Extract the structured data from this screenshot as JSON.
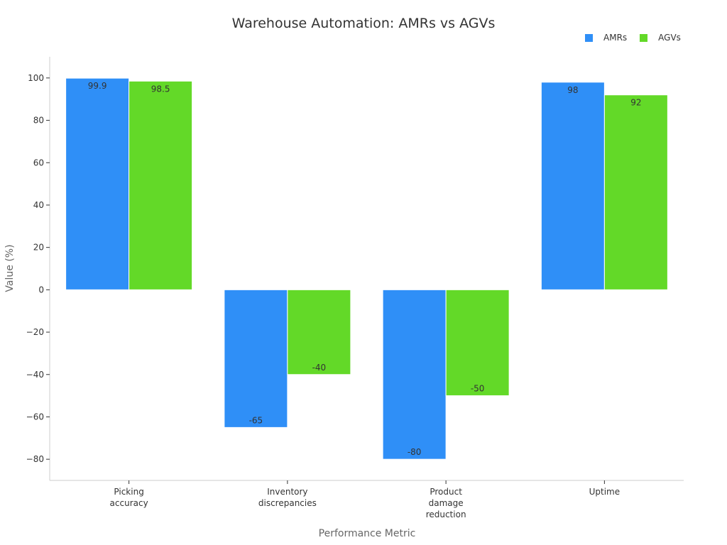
{
  "chart_data": {
    "type": "bar",
    "title": "Warehouse Automation: AMRs vs AGVs",
    "xlabel": "Performance Metric",
    "ylabel": "Value (%)",
    "categories": [
      [
        "Picking",
        "accuracy"
      ],
      [
        "Inventory",
        "discrepancies"
      ],
      [
        "Product",
        "damage",
        "reduction"
      ],
      [
        "Uptime"
      ]
    ],
    "series": [
      {
        "name": "AMRs",
        "color": "#2f8ff7",
        "values": [
          99.9,
          -65,
          -80,
          98
        ],
        "labels": [
          "99.9",
          "-65",
          "-80",
          "98"
        ]
      },
      {
        "name": "AGVs",
        "color": "#63d928",
        "values": [
          98.5,
          -40,
          -50,
          92
        ],
        "labels": [
          "98.5",
          "-40",
          "-50",
          "92"
        ]
      }
    ],
    "ylim": [
      -90,
      110
    ],
    "yticks": [
      100,
      80,
      60,
      40,
      20,
      0,
      -20,
      -40,
      -60,
      -80
    ],
    "ytick_labels": [
      "100",
      "80",
      "60",
      "40",
      "20",
      "0",
      "−20",
      "−40",
      "−60",
      "−80"
    ],
    "grid": false,
    "legend": "top-right"
  }
}
